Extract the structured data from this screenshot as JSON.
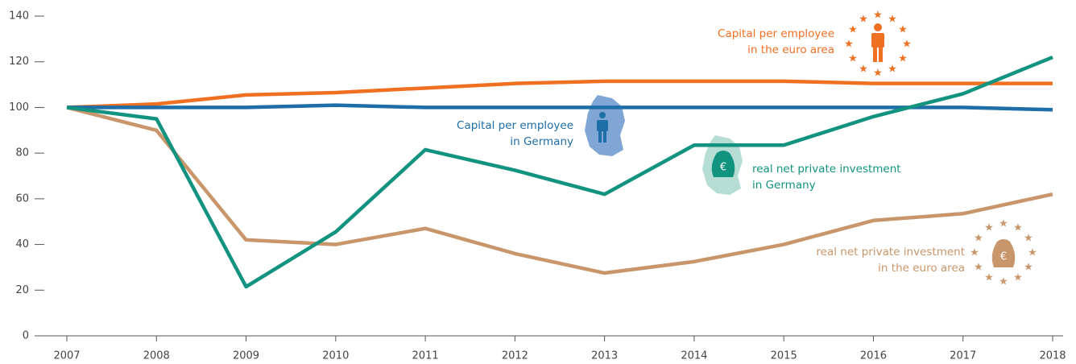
{
  "chart_data": {
    "type": "line",
    "x": [
      2007,
      2008,
      2009,
      2010,
      2011,
      2012,
      2013,
      2014,
      2015,
      2016,
      2017,
      2018
    ],
    "xlim": [
      2007,
      2018
    ],
    "ylim": [
      0,
      140
    ],
    "yticks": [
      0,
      20,
      40,
      60,
      80,
      100,
      120,
      140
    ],
    "series": [
      {
        "name": "Capital per employee in the euro area",
        "color": "#f07022",
        "values": [
          100,
          101.5,
          105.5,
          106.5,
          108.5,
          110.5,
          111.5,
          111.5,
          111.5,
          110.5,
          110.5,
          110.5
        ]
      },
      {
        "name": "Capital per employee in Germany",
        "color": "#1e6ea8",
        "values": [
          100,
          100,
          100,
          101,
          100,
          100,
          100,
          100,
          100,
          100,
          100,
          99
        ]
      },
      {
        "name": "real net private investment in Germany",
        "color": "#12937f",
        "values": [
          100,
          95,
          21.5,
          45.5,
          81.5,
          72.5,
          62,
          83.5,
          83.5,
          96,
          106,
          122
        ]
      },
      {
        "name": "real net private investment in the euro area",
        "color": "#c8966a",
        "values": [
          100,
          90,
          42,
          40,
          47,
          36,
          27.5,
          32.5,
          40,
          50.5,
          53.5,
          62
        ]
      }
    ]
  }
}
